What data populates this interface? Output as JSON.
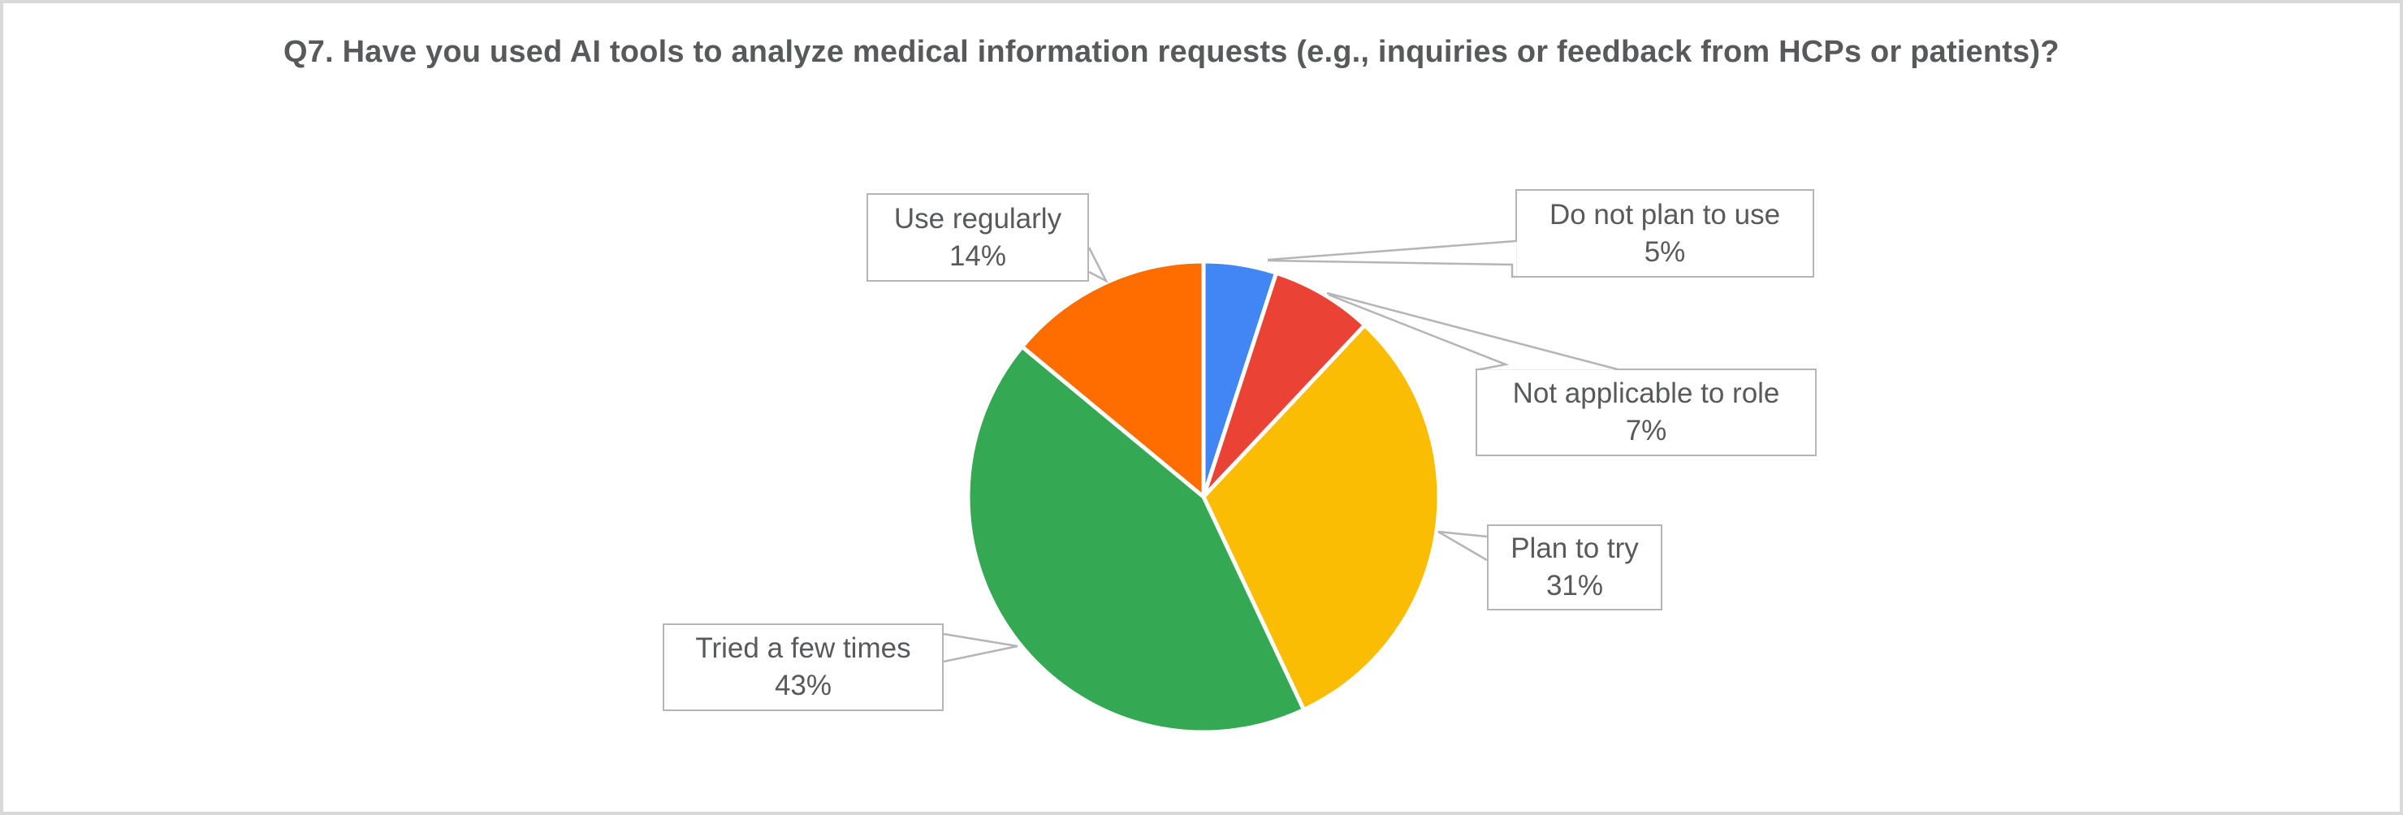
{
  "chart_data": {
    "type": "pie",
    "title": "Q7. Have you used AI tools to analyze medical information requests (e.g., inquiries or feedback from HCPs or patients)?",
    "categories": [
      "Do not plan to use",
      "Not applicable to role",
      "Plan to try",
      "Tried a few times",
      "Use regularly"
    ],
    "values": [
      5,
      7,
      31,
      43,
      14
    ],
    "unit": "%",
    "colors": [
      "#4285f4",
      "#ea4335",
      "#fbbc04",
      "#34a853",
      "#ff6d01"
    ],
    "start_angle_deg": 0,
    "direction": "clockwise",
    "legend": "none",
    "label_style": "callout-boxes-outside"
  },
  "callouts": [
    {
      "id": "use-regularly",
      "label": "Use regularly",
      "value_text": "14%"
    },
    {
      "id": "do-not-plan-to-use",
      "label": "Do not plan to use",
      "value_text": "5%"
    },
    {
      "id": "not-applicable-to-role",
      "label": "Not applicable to role",
      "value_text": "7%"
    },
    {
      "id": "plan-to-try",
      "label": "Plan to try",
      "value_text": "31%"
    },
    {
      "id": "tried-a-few-times",
      "label": "Tried a few times",
      "value_text": "43%"
    }
  ],
  "theme": {
    "background": "#ffffff",
    "frame_border": "#d9d9d9",
    "callout_border": "#b5b5b5",
    "leader_line": "#b5b5b5",
    "text_color": "#58595b"
  }
}
